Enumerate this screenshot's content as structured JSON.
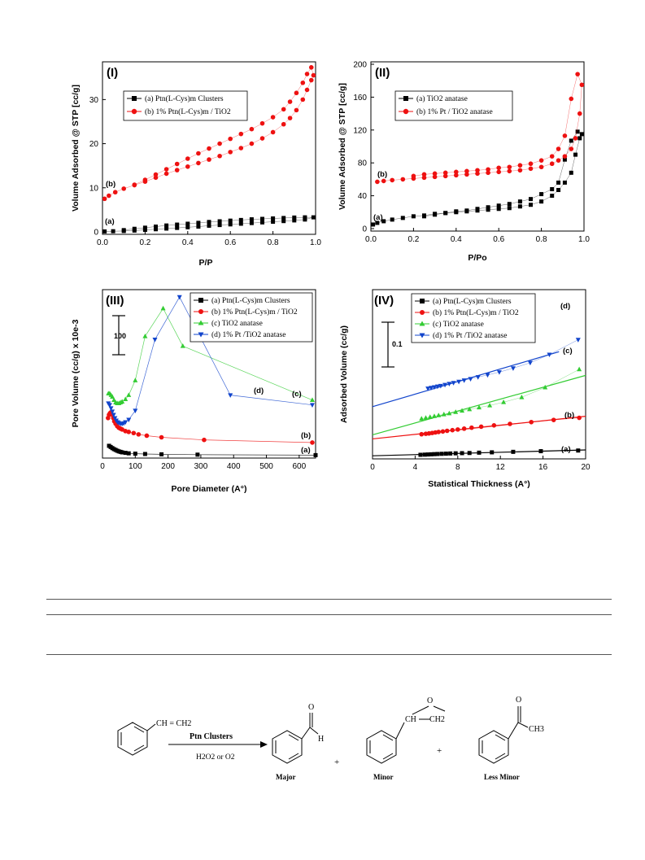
{
  "figure": {
    "panels": [
      {
        "label": "(I)",
        "xlabel": "P/P",
        "ylabel": "Volume Adsorbed @ STP [cc/g]",
        "curve_labels": [
          "(b)",
          "(a)"
        ],
        "legend": [
          "(a) Ptn(L-Cys)m Clusters",
          "(b) 1% Ptn(L-Cys)m / TiO2"
        ]
      },
      {
        "label": "(II)",
        "xlabel": "P/Po",
        "ylabel": "Volume Adsorbed @ STP [cc/g]",
        "curve_labels": [
          "(b)",
          "(a)"
        ],
        "legend": [
          "(a) TiO2 anatase",
          "(b) 1% Pt / TiO2 anatase"
        ]
      },
      {
        "label": "(III)",
        "xlabel": "Pore Diameter (A°)",
        "ylabel": "Pore Volume (cc/g) x 10e-3",
        "scale_label": "100",
        "curve_labels": [
          "(d)",
          "(c)",
          "(b)",
          "(a)"
        ],
        "legend": [
          "(a) Ptn(L-Cys)m Clusters",
          "(b) 1% Ptn(L-Cys)m / TiO2",
          "(c) TiO2 anatase",
          "(d) 1% Pt /TiO2 anatase"
        ]
      },
      {
        "label": "(IV)",
        "xlabel": "Statistical Thickness (A°)",
        "ylabel": "Adsorbed Volume (cc/g)",
        "scale_label": "0.1",
        "curve_labels": [
          "(d)",
          "(c)",
          "(b)",
          "(a)"
        ],
        "legend": [
          "(a) Ptn(L-Cys)m Clusters",
          "(b) 1% Ptn(L-Cys)m / TiO2",
          "(c) TiO2 anatase",
          "(d) 1% Pt /TiO2 anatase"
        ]
      }
    ]
  },
  "chart_data": [
    {
      "type": "scatter",
      "panel": "I",
      "xlim": [
        0,
        1.0
      ],
      "ylim": [
        0,
        38
      ],
      "xticks": [
        "0.0",
        "0.2",
        "0.4",
        "0.6",
        "0.8",
        "1.0"
      ],
      "yticks": [
        "0",
        "10",
        "20",
        "30"
      ],
      "series": [
        {
          "name": "(a) Ptn(L-Cys)m Clusters",
          "color": "#000000",
          "marker": "square",
          "x": [
            0.01,
            0.05,
            0.1,
            0.15,
            0.2,
            0.25,
            0.3,
            0.35,
            0.4,
            0.45,
            0.5,
            0.55,
            0.6,
            0.65,
            0.7,
            0.75,
            0.8,
            0.85,
            0.9,
            0.95,
            0.99,
            0.95,
            0.9,
            0.85,
            0.8,
            0.75,
            0.7,
            0.65,
            0.6,
            0.55,
            0.5,
            0.45,
            0.4,
            0.35,
            0.3,
            0.25,
            0.2,
            0.15,
            0.1
          ],
          "y": [
            0.1,
            0.15,
            0.2,
            0.3,
            0.45,
            0.6,
            0.75,
            0.9,
            1.05,
            1.2,
            1.4,
            1.55,
            1.7,
            1.85,
            2.0,
            2.15,
            2.3,
            2.45,
            2.6,
            2.8,
            3.3,
            3.3,
            3.25,
            3.15,
            3.05,
            2.95,
            2.85,
            2.7,
            2.55,
            2.4,
            2.25,
            2.05,
            1.85,
            1.65,
            1.45,
            1.2,
            0.95,
            0.7,
            0.4
          ]
        },
        {
          "name": "(b) 1% Ptn(L-Cys)m / TiO2",
          "color": "#ee1111",
          "marker": "circle",
          "x": [
            0.01,
            0.03,
            0.06,
            0.1,
            0.15,
            0.2,
            0.25,
            0.3,
            0.35,
            0.4,
            0.45,
            0.5,
            0.55,
            0.6,
            0.65,
            0.7,
            0.75,
            0.8,
            0.85,
            0.88,
            0.91,
            0.94,
            0.96,
            0.98,
            0.99,
            0.98,
            0.96,
            0.94,
            0.91,
            0.88,
            0.85,
            0.8,
            0.75,
            0.7,
            0.65,
            0.6,
            0.55,
            0.5,
            0.45,
            0.4,
            0.35,
            0.3,
            0.25,
            0.2,
            0.15
          ],
          "y": [
            7.5,
            8.2,
            9.0,
            9.8,
            10.6,
            11.4,
            12.3,
            13.2,
            14.0,
            14.8,
            15.6,
            16.4,
            17.2,
            18.1,
            19.0,
            20.0,
            21.2,
            22.6,
            24.4,
            25.8,
            27.6,
            30.0,
            32.2,
            34.4,
            35.5,
            37.3,
            35.8,
            33.8,
            31.5,
            29.5,
            27.8,
            26.0,
            24.6,
            23.3,
            22.2,
            21.1,
            20.0,
            18.9,
            17.8,
            16.6,
            15.4,
            14.2,
            13.0,
            11.8,
            10.7
          ]
        }
      ]
    },
    {
      "type": "scatter",
      "panel": "II",
      "xlim": [
        0,
        1.0
      ],
      "ylim": [
        0,
        200
      ],
      "xticks": [
        "0.0",
        "0.2",
        "0.4",
        "0.6",
        "0.8",
        "1.0"
      ],
      "yticks": [
        "0",
        "40",
        "80",
        "120",
        "160",
        "200"
      ],
      "series": [
        {
          "name": "(a) TiO2 anatase",
          "color": "#000000",
          "marker": "square",
          "x": [
            0.01,
            0.03,
            0.06,
            0.1,
            0.15,
            0.2,
            0.25,
            0.3,
            0.35,
            0.4,
            0.45,
            0.5,
            0.55,
            0.6,
            0.65,
            0.7,
            0.75,
            0.8,
            0.85,
            0.88,
            0.91,
            0.94,
            0.96,
            0.98,
            0.99,
            0.97,
            0.94,
            0.91,
            0.88,
            0.85,
            0.8,
            0.75,
            0.7,
            0.65,
            0.6,
            0.55,
            0.5,
            0.45,
            0.4,
            0.35,
            0.3,
            0.25
          ],
          "y": [
            5,
            7,
            9,
            11,
            13,
            15,
            16,
            18,
            19,
            20,
            21,
            22,
            23,
            24,
            25,
            27,
            29,
            33,
            40,
            47,
            56,
            68,
            90,
            110,
            115,
            118,
            107,
            84,
            56,
            48,
            42,
            36,
            33,
            30,
            28,
            26,
            24,
            22,
            21,
            19,
            17,
            15
          ]
        },
        {
          "name": "(b) 1% Pt / TiO2 anatase",
          "color": "#ee1111",
          "marker": "circle",
          "x": [
            0.03,
            0.06,
            0.1,
            0.15,
            0.2,
            0.25,
            0.3,
            0.35,
            0.4,
            0.45,
            0.5,
            0.55,
            0.6,
            0.65,
            0.7,
            0.75,
            0.8,
            0.85,
            0.88,
            0.91,
            0.94,
            0.96,
            0.98,
            0.99,
            0.97,
            0.94,
            0.91,
            0.88,
            0.85,
            0.8,
            0.75,
            0.7,
            0.65,
            0.6,
            0.55,
            0.5,
            0.45,
            0.4,
            0.35,
            0.3,
            0.25,
            0.2
          ],
          "y": [
            57,
            58,
            59,
            60,
            61,
            62,
            63,
            64,
            65,
            66,
            67,
            68,
            69,
            70,
            71,
            73,
            75,
            79,
            83,
            88,
            97,
            110,
            140,
            175,
            188,
            158,
            113,
            97,
            88,
            83,
            79,
            77,
            75,
            74,
            72,
            71,
            70,
            69,
            68,
            67,
            66,
            64
          ]
        }
      ]
    },
    {
      "type": "line",
      "panel": "III",
      "xlim": [
        0,
        650
      ],
      "ylim": [
        0,
        100
      ],
      "xticks": [
        "0",
        "100",
        "200",
        "300",
        "400",
        "500",
        "600"
      ],
      "series": [
        {
          "name": "(a) Ptn(L-Cys)m Clusters",
          "color": "#000000",
          "marker": "square",
          "x": [
            20,
            25,
            30,
            35,
            40,
            45,
            50,
            55,
            60,
            70,
            80,
            100,
            130,
            180,
            290,
            650
          ],
          "y": [
            6,
            5.3,
            4.6,
            4.0,
            3.5,
            3.0,
            2.6,
            2.3,
            2.0,
            1.7,
            1.4,
            1.2,
            1.0,
            0.8,
            0.6,
            0.3
          ]
        },
        {
          "name": "(b) 1% Ptn(L-Cys)m / TiO2",
          "color": "#ee1111",
          "marker": "circle",
          "x": [
            17,
            20,
            23,
            26,
            30,
            33,
            36,
            40,
            45,
            50,
            55,
            60,
            70,
            80,
            95,
            110,
            135,
            180,
            310,
            640
          ],
          "y": [
            23,
            25,
            26,
            26.5,
            25,
            23,
            21,
            19.5,
            18,
            17,
            16.5,
            16,
            15,
            14.5,
            13.8,
            13,
            12.2,
            11.2,
            9.6,
            8.0
          ]
        },
        {
          "name": "(c) TiO2 anatase",
          "color": "#33cc33",
          "marker": "triangle-up",
          "x": [
            18,
            22,
            26,
            30,
            35,
            40,
            45,
            50,
            55,
            60,
            70,
            80,
            100,
            130,
            185,
            245,
            640
          ],
          "y": [
            38,
            38,
            37,
            36,
            34,
            32.5,
            32,
            32,
            32.5,
            33,
            34.5,
            37,
            46,
            73,
            90,
            67,
            34
          ]
        },
        {
          "name": "(d) 1% Pt /TiO2 anatase",
          "color": "#1144cc",
          "marker": "triangle-down",
          "x": [
            18,
            22,
            26,
            30,
            34,
            38,
            42,
            46,
            50,
            55,
            60,
            65,
            70,
            80,
            100,
            160,
            235,
            390,
            640
          ],
          "y": [
            32,
            31,
            29,
            27,
            25,
            23,
            21.5,
            20.5,
            20,
            19.5,
            19.5,
            19.8,
            20.5,
            22,
            27.5,
            71,
            97,
            37,
            31
          ]
        }
      ]
    },
    {
      "type": "scatter",
      "panel": "IV",
      "xlim": [
        0,
        20
      ],
      "ylim": [
        0,
        1
      ],
      "xticks": [
        "0",
        "4",
        "8",
        "12",
        "16",
        "20"
      ],
      "series": [
        {
          "name": "(a) Ptn(L-Cys)m Clusters",
          "color": "#000000",
          "marker": "square",
          "x": [
            4.5,
            4.9,
            5.2,
            5.5,
            5.8,
            6.1,
            6.5,
            6.9,
            7.3,
            7.8,
            8.4,
            9.1,
            10.0,
            11.2,
            13.2,
            15.8,
            19.3
          ],
          "y": [
            0.01,
            0.011,
            0.012,
            0.013,
            0.014,
            0.015,
            0.016,
            0.017,
            0.018,
            0.019,
            0.02,
            0.021,
            0.023,
            0.025,
            0.028,
            0.032,
            0.036
          ]
        },
        {
          "name": "(b) 1% Ptn(L-Cys)m / TiO2",
          "color": "#ee1111",
          "marker": "circle",
          "x": [
            4.6,
            5.0,
            5.3,
            5.6,
            5.9,
            6.2,
            6.6,
            7.0,
            7.5,
            8.0,
            8.6,
            9.3,
            10.2,
            11.4,
            12.9,
            14.9,
            17.0,
            19.4
          ],
          "y": [
            0.135,
            0.138,
            0.14,
            0.143,
            0.146,
            0.149,
            0.152,
            0.156,
            0.16,
            0.164,
            0.169,
            0.175,
            0.181,
            0.189,
            0.198,
            0.209,
            0.222,
            0.235
          ]
        },
        {
          "name": "(c) TiO2 anatase",
          "color": "#33cc33",
          "marker": "triangle-up",
          "x": [
            4.6,
            5.0,
            5.4,
            5.8,
            6.2,
            6.7,
            7.2,
            7.8,
            8.4,
            9.1,
            10.0,
            11.0,
            12.3,
            14.0,
            16.2,
            19.4
          ],
          "y": [
            0.23,
            0.235,
            0.24,
            0.245,
            0.25,
            0.256,
            0.262,
            0.27,
            0.278,
            0.287,
            0.298,
            0.31,
            0.33,
            0.36,
            0.42,
            0.53
          ]
        },
        {
          "name": "(d) 1% Pt /TiO2 anatase",
          "color": "#1144cc",
          "marker": "triangle-down",
          "x": [
            5.2,
            5.5,
            5.8,
            6.1,
            6.4,
            6.8,
            7.2,
            7.6,
            8.1,
            8.6,
            9.2,
            9.9,
            10.8,
            11.9,
            13.2,
            14.8,
            16.6,
            19.3
          ],
          "y": [
            0.414,
            0.418,
            0.422,
            0.426,
            0.43,
            0.436,
            0.442,
            0.448,
            0.455,
            0.463,
            0.472,
            0.483,
            0.496,
            0.513,
            0.537,
            0.57,
            0.62,
            0.71
          ]
        }
      ]
    }
  ],
  "scheme": {
    "reactant_label": "CH = CH2",
    "arrow_top": "Ptn Clusters",
    "arrow_bottom": "H2O2  or  O2",
    "plus": "+",
    "aldehyde_o": "O",
    "aldehyde_h": "H",
    "epoxide_o": "O",
    "epoxide_ch": "CH",
    "epoxide_ch2": "CH2",
    "ketone_o": "O",
    "ketone_ch3": "CH3",
    "labels": [
      "Major",
      "Minor",
      "Less Minor"
    ]
  }
}
